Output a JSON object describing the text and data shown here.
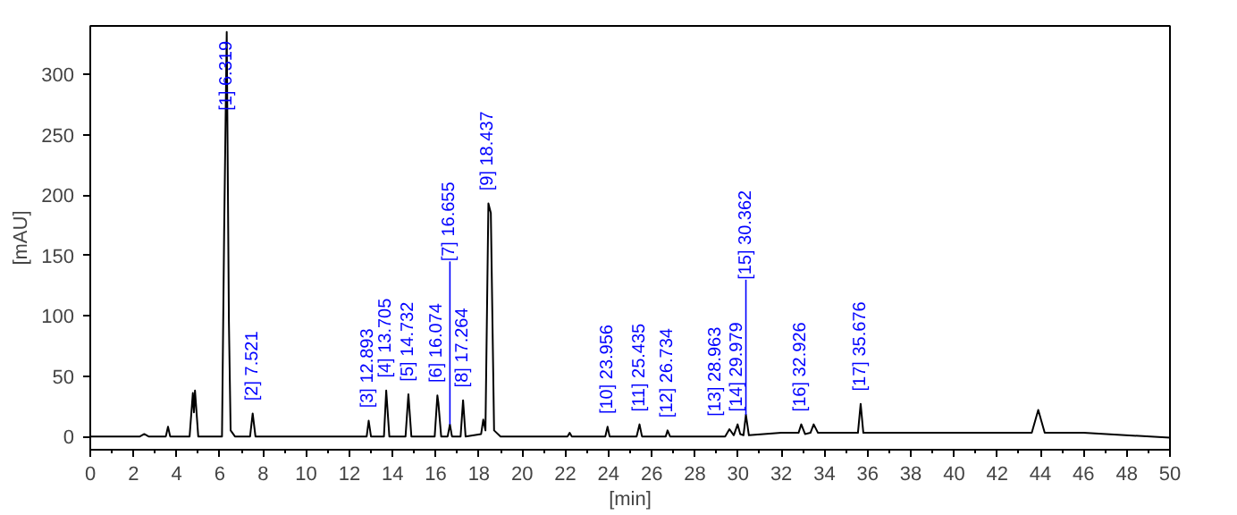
{
  "chart_data": {
    "type": "line",
    "xlabel": "[min]",
    "ylabel": "[mAU]",
    "xlim": [
      0,
      50
    ],
    "ylim": [
      -11,
      340
    ],
    "xticks": [
      0,
      2,
      4,
      6,
      8,
      10,
      12,
      14,
      16,
      18,
      20,
      22,
      24,
      26,
      28,
      30,
      32,
      34,
      36,
      38,
      40,
      42,
      44,
      46,
      48,
      50
    ],
    "yticks": [
      0,
      50,
      100,
      150,
      200,
      250,
      300
    ],
    "grid": false,
    "marker": "none",
    "line_style": "solid",
    "series": [
      {
        "color": "#000000",
        "x": [
          0,
          2.3,
          2.5,
          2.7,
          3.5,
          3.6,
          3.7,
          4.6,
          4.75,
          4.8,
          4.85,
          5.0,
          6.1,
          6.2,
          6.319,
          6.42,
          6.5,
          6.7,
          7.4,
          7.521,
          7.65,
          9,
          12.8,
          12.893,
          13.0,
          13.6,
          13.705,
          13.85,
          14.6,
          14.732,
          14.87,
          15.95,
          16.074,
          16.12,
          16.25,
          16.55,
          16.655,
          16.75,
          17.15,
          17.264,
          17.38,
          18.1,
          18.2,
          18.3,
          18.437,
          18.55,
          18.7,
          19,
          22.1,
          22.2,
          22.3,
          23.85,
          23.956,
          24.05,
          25.3,
          25.435,
          25.55,
          26.65,
          26.734,
          26.85,
          29.4,
          29.6,
          29.8,
          29.979,
          30.1,
          30.25,
          30.362,
          30.5,
          32,
          32.8,
          32.926,
          33.1,
          33.35,
          33.5,
          33.7,
          35.55,
          35.676,
          35.8,
          40,
          43.6,
          43.9,
          44.2,
          46,
          50
        ],
        "values": [
          0,
          0,
          2,
          0,
          0,
          8,
          0,
          0,
          36,
          20,
          38,
          0,
          0,
          170,
          335,
          95,
          5,
          0,
          0,
          19,
          0,
          0,
          0,
          13,
          0,
          0,
          38,
          0,
          0,
          35,
          0,
          0,
          34,
          28,
          0,
          0,
          10,
          0,
          0,
          30,
          0,
          2,
          14,
          5,
          193,
          185,
          5,
          0,
          0,
          3,
          0,
          0,
          8,
          0,
          0,
          10,
          0,
          0,
          5,
          0,
          0,
          6,
          1,
          10,
          2,
          1,
          18,
          1,
          3,
          3,
          10,
          2,
          3,
          10,
          3,
          3,
          27,
          3,
          3,
          3,
          22,
          3,
          3,
          -1
        ]
      }
    ],
    "annotations": [
      {
        "text": "[1]  6.319",
        "x": 6.319,
        "y": 335
      },
      {
        "text": "[2]  7.521",
        "x": 7.521,
        "y": 19
      },
      {
        "text": "[3]  12.893",
        "x": 12.893,
        "y": 13
      },
      {
        "text": "[4]  13.705",
        "x": 13.705,
        "y": 38
      },
      {
        "text": "[5]  14.732",
        "x": 14.732,
        "y": 35
      },
      {
        "text": "[6]  16.074",
        "x": 16.074,
        "y": 34
      },
      {
        "text": "[7]  16.655",
        "x": 16.655,
        "y": 10
      },
      {
        "text": "[8]  17.264",
        "x": 17.264,
        "y": 30
      },
      {
        "text": "[9]  18.437",
        "x": 18.437,
        "y": 193
      },
      {
        "text": "[10]  23.956",
        "x": 23.956,
        "y": 8
      },
      {
        "text": "[11]  25.435",
        "x": 25.435,
        "y": 10
      },
      {
        "text": "[12]  26.734",
        "x": 26.734,
        "y": 5
      },
      {
        "text": "[13]  28.963",
        "x": 28.963,
        "y": 6
      },
      {
        "text": "[14]  29.979",
        "x": 29.979,
        "y": 10
      },
      {
        "text": "[15]  30.362",
        "x": 30.362,
        "y": 18
      },
      {
        "text": "[16]  32.926",
        "x": 32.926,
        "y": 10
      },
      {
        "text": "[17]  35.676",
        "x": 35.676,
        "y": 27
      }
    ]
  }
}
